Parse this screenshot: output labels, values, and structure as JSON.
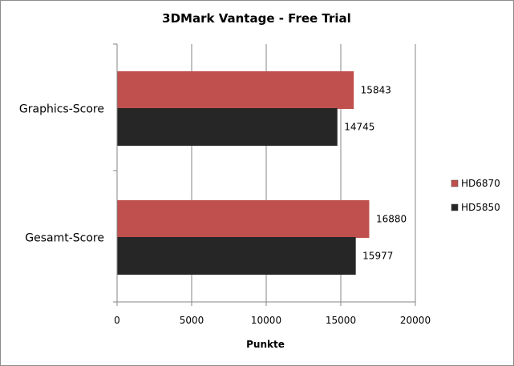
{
  "chart_data": {
    "type": "bar",
    "orientation": "horizontal",
    "title": "3DMark Vantage - Free Trial",
    "xlabel": "Punkte",
    "ylabel": "",
    "categories": [
      "Graphics-Score",
      "Gesamt-Score"
    ],
    "series": [
      {
        "name": "HD6870",
        "color": "#c0504d",
        "values": [
          15843,
          16880
        ],
        "labels": [
          "15843",
          "16880"
        ]
      },
      {
        "name": "HD5850",
        "color": "#262626",
        "values": [
          14745,
          15977
        ],
        "labels": [
          "14745",
          "15977"
        ]
      }
    ],
    "xlim": [
      0,
      20000
    ],
    "xticks": [
      0,
      5000,
      10000,
      15000,
      20000
    ],
    "xtick_labels": [
      "0",
      "5000",
      "10000",
      "15000",
      "20000"
    ],
    "grid": "vertical",
    "legend_position": "right"
  }
}
